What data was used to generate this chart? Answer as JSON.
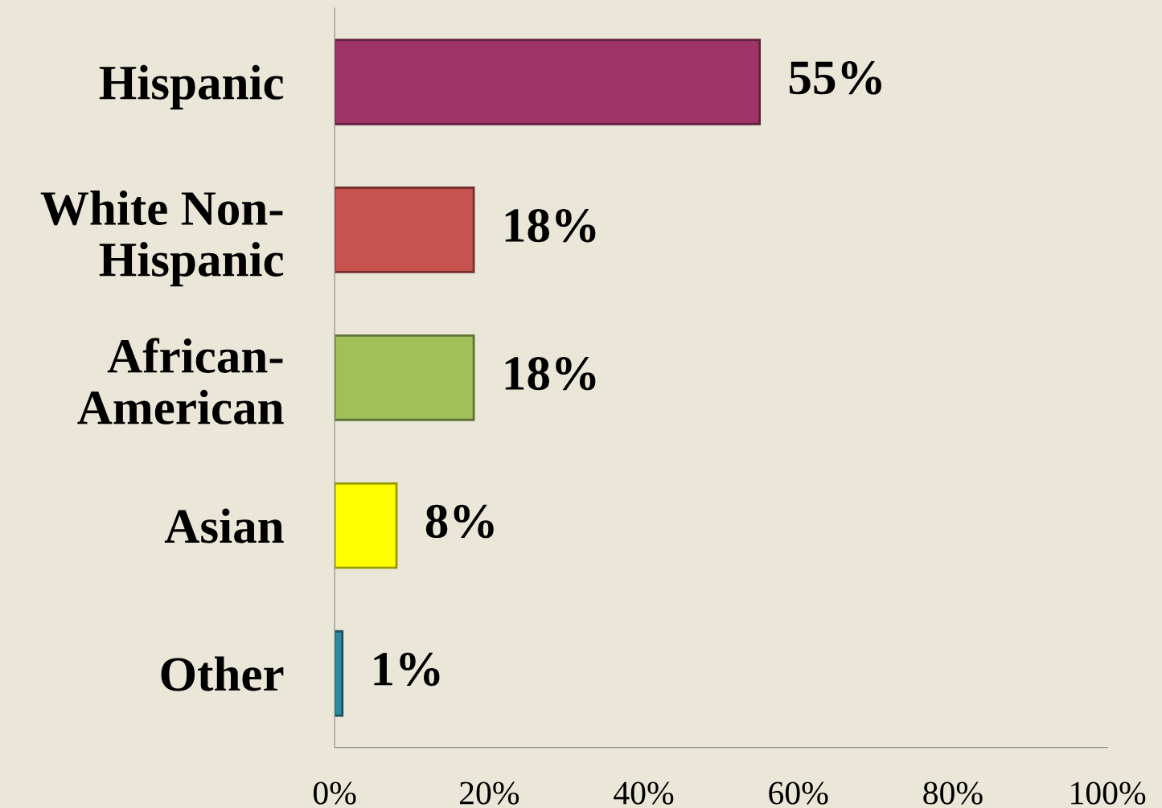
{
  "chart_data": {
    "type": "bar",
    "orientation": "horizontal",
    "categories": [
      "Hispanic",
      "White Non-Hispanic",
      "African-American",
      "Asian",
      "Other"
    ],
    "values": [
      55,
      18,
      18,
      8,
      1
    ],
    "colors": [
      "#9e3366",
      "#c8524f",
      "#a0c05a",
      "#ffff00",
      "#2e8aa0"
    ],
    "value_labels": [
      "55%",
      "18%",
      "18%",
      "8%",
      "1%"
    ],
    "xlim": [
      0,
      100
    ],
    "xticks": [
      {
        "value": 0,
        "label": "0%"
      },
      {
        "value": 20,
        "label": "20%"
      },
      {
        "value": 40,
        "label": "40%"
      },
      {
        "value": 60,
        "label": "60%"
      },
      {
        "value": 80,
        "label": "80%"
      },
      {
        "value": 100,
        "label": "100%"
      }
    ],
    "grid": false,
    "legend": false
  }
}
